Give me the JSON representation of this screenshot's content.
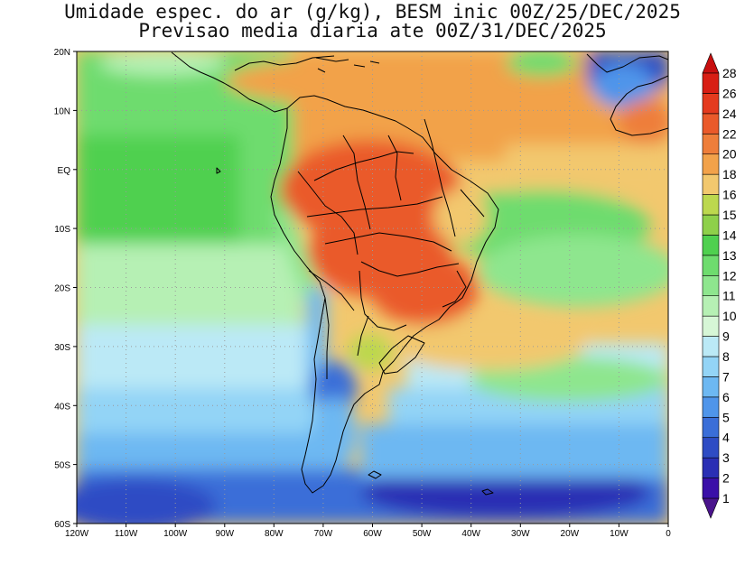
{
  "title": {
    "line1": "Umidade espec. do ar (g/kg), BESM inic 00Z/25/DEC/2025",
    "line2": "Previsao media diaria ate 00Z/31/DEC/2025"
  },
  "map": {
    "lon_range": [
      -120,
      0
    ],
    "lat_range": [
      -60,
      20
    ],
    "lon_labels": [
      "120W",
      "110W",
      "100W",
      "90W",
      "80W",
      "70W",
      "60W",
      "50W",
      "40W",
      "30W",
      "20W",
      "10W",
      "0"
    ],
    "lat_labels": [
      "20N",
      "10N",
      "EQ",
      "10S",
      "20S",
      "30S",
      "40S",
      "50S",
      "60S"
    ]
  },
  "colorbar": {
    "levels": [
      "1",
      "2",
      "3",
      "4",
      "5",
      "6",
      "7",
      "8",
      "9",
      "10",
      "11",
      "12",
      "13",
      "14",
      "15",
      "16",
      "18",
      "20",
      "22",
      "24",
      "26",
      "28"
    ],
    "colors": [
      "#4a148c",
      "#3a0fa8",
      "#2a2fb4",
      "#2e4cc4",
      "#3a6ed8",
      "#4f95ea",
      "#6db8f2",
      "#93d4f6",
      "#bbe9f6",
      "#d6f6d6",
      "#b6f0b4",
      "#8ee68e",
      "#6edc6e",
      "#4fd04f",
      "#8ed04a",
      "#bcd84e",
      "#f2c86e",
      "#f2a24a",
      "#ee7e3a",
      "#ea5a2a",
      "#e43a1e",
      "#d81e14",
      "#c80f0f"
    ]
  }
}
